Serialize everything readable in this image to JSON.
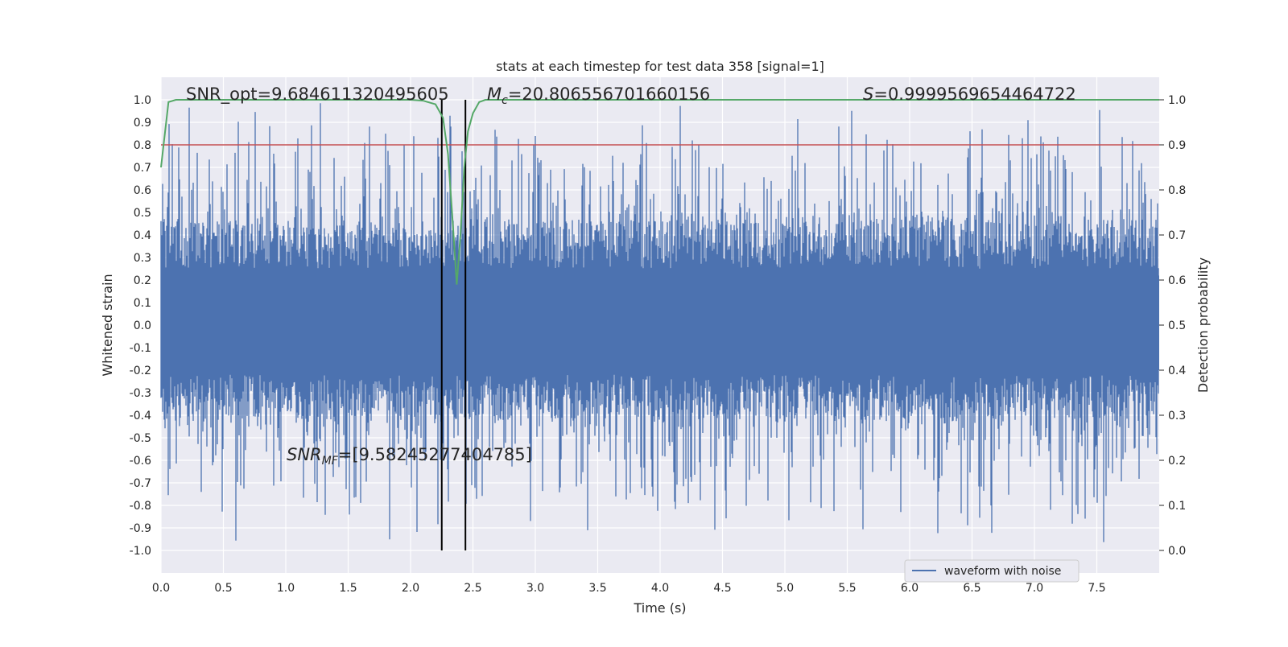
{
  "chart_data": {
    "type": "line",
    "title": "stats at each timestep for test data 358 [signal=1]",
    "xlabel": "Time (s)",
    "ylabel_left": "Whitened strain",
    "ylabel_right": "Detection probability",
    "xlim": [
      0.0,
      8.0
    ],
    "ylim_left": [
      -1.1,
      1.1
    ],
    "ylim_right": [
      -0.05,
      1.05
    ],
    "x_ticks": [
      "0.0",
      "0.5",
      "1.0",
      "1.5",
      "2.0",
      "2.5",
      "3.0",
      "3.5",
      "4.0",
      "4.5",
      "5.0",
      "5.5",
      "6.0",
      "6.5",
      "7.0",
      "7.5"
    ],
    "x_tick_values": [
      0.0,
      0.5,
      1.0,
      1.5,
      2.0,
      2.5,
      3.0,
      3.5,
      4.0,
      4.5,
      5.0,
      5.5,
      6.0,
      6.5,
      7.0,
      7.5
    ],
    "y_left_ticks": [
      "1.0",
      "0.9",
      "0.8",
      "0.7",
      "0.6",
      "0.5",
      "0.4",
      "0.3",
      "0.2",
      "0.1",
      "0.0",
      "-0.1",
      "-0.2",
      "-0.3",
      "-0.4",
      "-0.5",
      "-0.6",
      "-0.7",
      "-0.8",
      "-0.9",
      "-1.0"
    ],
    "y_left_tick_values": [
      1.0,
      0.9,
      0.8,
      0.7,
      0.6,
      0.5,
      0.4,
      0.3,
      0.2,
      0.1,
      0.0,
      -0.1,
      -0.2,
      -0.3,
      -0.4,
      -0.5,
      -0.6,
      -0.7,
      -0.8,
      -0.9,
      -1.0
    ],
    "y_right_ticks": [
      "1.0",
      "0.9",
      "0.8",
      "0.7",
      "0.6",
      "0.5",
      "0.4",
      "0.3",
      "0.2",
      "0.1",
      "0.0"
    ],
    "y_right_tick_values": [
      1.0,
      0.9,
      0.8,
      0.7,
      0.6,
      0.5,
      0.4,
      0.3,
      0.2,
      0.1,
      0.0
    ],
    "grid": true,
    "legend": {
      "position": "lower-right",
      "entries": [
        "waveform with noise"
      ]
    },
    "series": [
      {
        "name": "waveform with noise",
        "axis": "left",
        "color": "#4c72b0",
        "style": "dense noise",
        "x_range": [
          0.0,
          8.0
        ],
        "envelope_peak": 1.0,
        "envelope_trough": -0.97
      },
      {
        "name": "detection probability",
        "axis": "right",
        "color": "#55a868",
        "x": [
          0.0,
          0.06,
          0.12,
          0.2,
          0.4,
          0.8,
          1.2,
          1.6,
          2.0,
          2.1,
          2.2,
          2.26,
          2.3,
          2.34,
          2.37,
          2.4,
          2.43,
          2.46,
          2.5,
          2.55,
          2.6,
          3.0,
          4.0,
          5.0,
          6.0,
          7.0,
          8.0
        ],
        "values": [
          0.85,
          0.995,
          1.0,
          1.0,
          1.0,
          1.0,
          1.0,
          1.0,
          1.0,
          0.998,
          0.99,
          0.96,
          0.88,
          0.72,
          0.59,
          0.7,
          0.85,
          0.93,
          0.97,
          0.995,
          1.0,
          1.0,
          1.0,
          1.0,
          1.0,
          1.0,
          1.0
        ]
      },
      {
        "name": "threshold",
        "axis": "right",
        "color": "#c44e52",
        "y": 0.9
      }
    ],
    "vertical_lines": [
      2.25,
      2.44
    ],
    "annotations": {
      "snr_opt": "SNR_opt=9.684611320495605",
      "mc_symbol": "M",
      "mc_sub": "c",
      "mc_value": "=20.806556701660156",
      "s_symbol": "S",
      "s_value": "=0.9999569654464722",
      "snr_mf_symbol": "SNR",
      "snr_mf_sub": "MF",
      "snr_mf_value": "=[9.58245277404785]"
    }
  }
}
